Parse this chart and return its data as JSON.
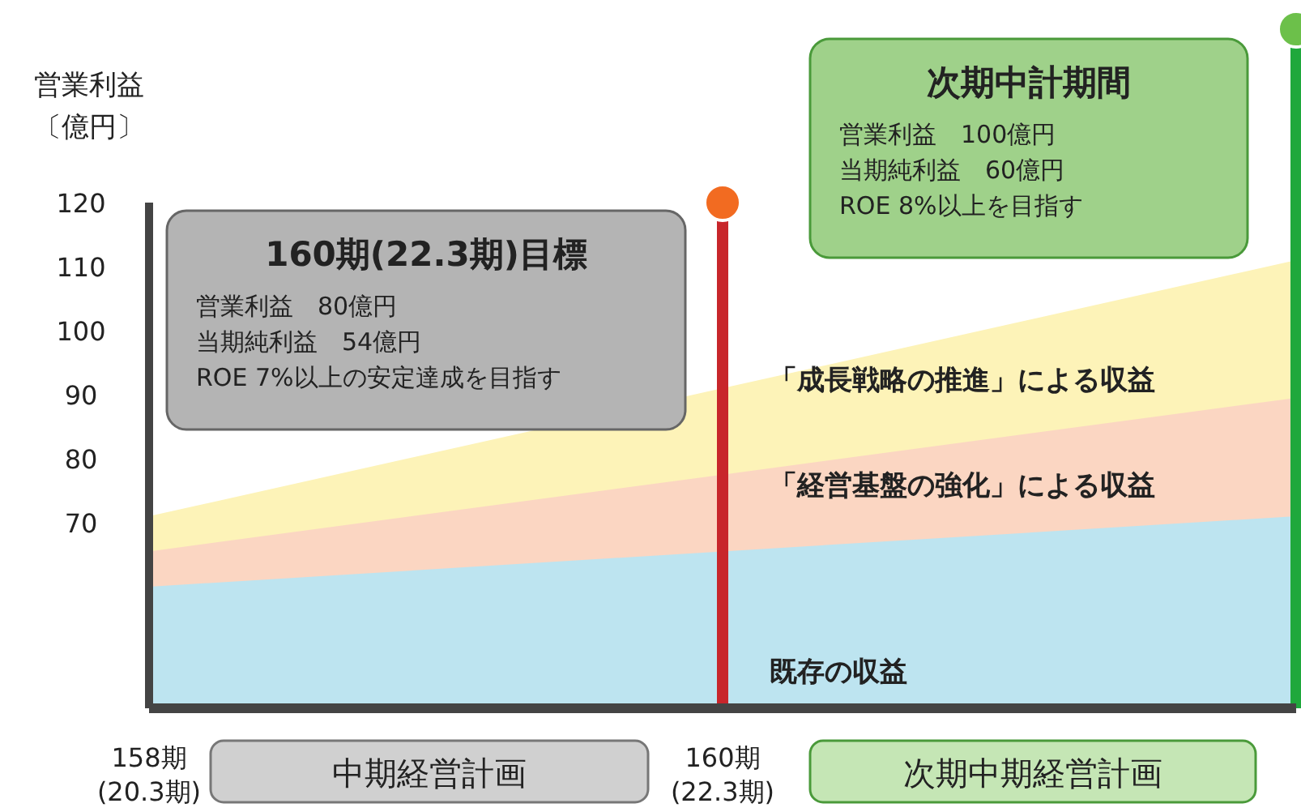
{
  "chart_data": {
    "type": "area",
    "ylabel": "営業利益〔億円〕",
    "categories": [
      "158期\n(20.3期)",
      "160期\n(22.3期)",
      null
    ],
    "ylim": [
      41,
      120
    ],
    "yticks": [
      70,
      80,
      90,
      100,
      110,
      120
    ],
    "series": [
      {
        "name": "「成長戦略の推進」による収益",
        "color": "#fdf3b8",
        "values": [
          71,
          91,
          111
        ]
      },
      {
        "name": "「経営基盤の強化」による収益",
        "color": "#fbd6c2",
        "values": [
          65.5,
          77.5,
          89.5
        ]
      },
      {
        "name": "既存の収益",
        "color": "#bde4f0",
        "values": [
          60,
          65.5,
          71
        ]
      }
    ],
    "ref_lines": [
      {
        "axis": "x",
        "value": "160期\n(22.3期)",
        "color": "#c8262b"
      }
    ],
    "annotations": [
      "160期(22.3期)目標",
      "営業利益　80億円",
      "当期純利益　54億円",
      "ROE 7%以上の安定達成を目指す",
      "次期中計期間",
      "営業利益　100億円",
      "当期純利益　60億円",
      "ROE 8%以上を目指す",
      "中期経営計画",
      "次期中期経営計画"
    ]
  }
}
